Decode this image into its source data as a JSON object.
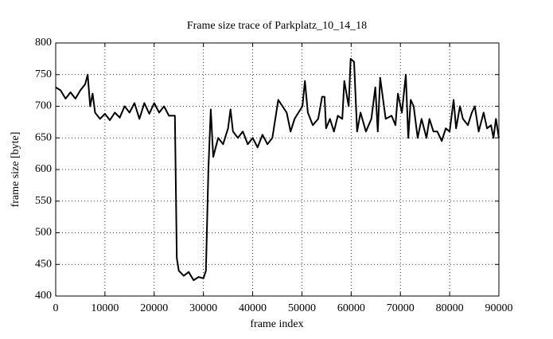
{
  "chart_data": {
    "type": "line",
    "title": "Frame size trace of Parkplatz_10_14_18",
    "xlabel": "frame index",
    "ylabel": "frame size [byte]",
    "xlim": [
      0,
      90000
    ],
    "ylim": [
      400,
      800
    ],
    "xticks": [
      0,
      10000,
      20000,
      30000,
      40000,
      50000,
      60000,
      70000,
      80000,
      90000
    ],
    "yticks": [
      400,
      450,
      500,
      550,
      600,
      650,
      700,
      750,
      800
    ],
    "grid": true,
    "series": [
      {
        "color": "#000000",
        "x": [
          0,
          1000,
          2000,
          3000,
          4000,
          5000,
          6000,
          6500,
          7000,
          7500,
          8000,
          9000,
          10000,
          11000,
          12000,
          13000,
          14000,
          15000,
          16000,
          17000,
          18000,
          19000,
          20000,
          21000,
          22000,
          23000,
          24200,
          24600,
          25000,
          26000,
          27000,
          28000,
          29000,
          30000,
          30500,
          31000,
          31500,
          32000,
          33000,
          34000,
          35000,
          35500,
          36000,
          37000,
          38000,
          39000,
          40000,
          41000,
          42000,
          43000,
          44000,
          45200,
          46900,
          47700,
          48500,
          50100,
          50600,
          51200,
          52200,
          53300,
          54100,
          54600,
          54900,
          55700,
          56500,
          57300,
          58200,
          58600,
          59500,
          59900,
          60600,
          61200,
          61900,
          63000,
          64100,
          64900,
          65400,
          65900,
          67000,
          68200,
          69000,
          69500,
          70300,
          71100,
          71600,
          72100,
          72700,
          73500,
          74300,
          75300,
          75900,
          76700,
          77500,
          78400,
          79200,
          80000,
          80800,
          81300,
          82100,
          82700,
          83700,
          84500,
          85100,
          85900,
          86900,
          87600,
          88400,
          88900,
          89400,
          90000
        ],
        "values": [
          730,
          725,
          712,
          722,
          712,
          725,
          735,
          750,
          700,
          720,
          690,
          680,
          688,
          678,
          690,
          682,
          700,
          690,
          705,
          680,
          705,
          688,
          705,
          690,
          700,
          685,
          685,
          460,
          440,
          432,
          438,
          425,
          430,
          428,
          440,
          600,
          695,
          620,
          650,
          640,
          665,
          695,
          660,
          650,
          660,
          640,
          650,
          635,
          655,
          640,
          650,
          710,
          690,
          660,
          680,
          700,
          740,
          690,
          670,
          680,
          715,
          715,
          665,
          680,
          660,
          685,
          680,
          740,
          700,
          775,
          770,
          660,
          690,
          660,
          680,
          730,
          660,
          745,
          680,
          685,
          670,
          720,
          690,
          750,
          650,
          710,
          700,
          650,
          680,
          650,
          680,
          660,
          660,
          645,
          665,
          660,
          710,
          665,
          700,
          680,
          670,
          690,
          700,
          660,
          690,
          665,
          670,
          650,
          680,
          650
        ]
      }
    ]
  }
}
